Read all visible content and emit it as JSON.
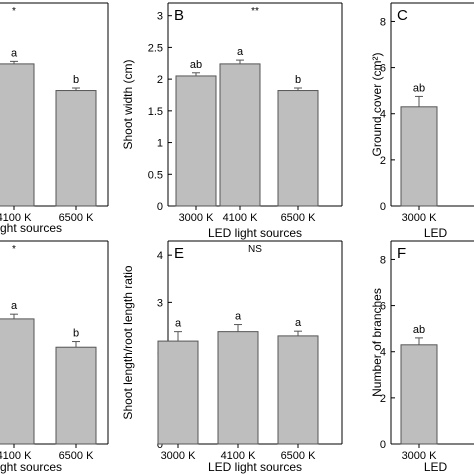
{
  "colors": {
    "bar_fill": "#bebebe",
    "bar_stroke": "#555555",
    "axis": "#000000"
  },
  "chart_data": [
    {
      "panel": "A",
      "type": "bar",
      "categories": [
        "4100 K",
        "6500 K"
      ],
      "tick_labels": [
        "4100 K",
        "6500 K"
      ],
      "values": [
        2.24,
        1.82
      ],
      "errors": [
        0.04,
        0.04
      ],
      "letters": [
        "a",
        "b"
      ],
      "significance": "*",
      "xlabel": "LED light sources",
      "xlabel_visible": "ght sources",
      "ylabel": "",
      "ylim": [
        0,
        3.2
      ],
      "yticks": [],
      "panel_label_visible": false,
      "grid": false
    },
    {
      "panel": "B",
      "type": "bar",
      "categories": [
        "3000 K",
        "4100 K",
        "6500 K"
      ],
      "tick_labels": [
        "3000 K",
        "4100 K",
        "6500 K"
      ],
      "values": [
        2.05,
        2.24,
        1.82
      ],
      "errors": [
        0.05,
        0.06,
        0.04
      ],
      "letters": [
        "ab",
        "a",
        "b"
      ],
      "significance": "**",
      "xlabel": "LED light sources",
      "xlabel_visible": "LED light sources",
      "ylabel": "Shoot width (cm)",
      "ylim": [
        0,
        3.2
      ],
      "yticks": [
        "0",
        "0.5",
        "1",
        "1.5",
        "2",
        "2.5",
        "3"
      ],
      "panel_label_visible": true,
      "grid": false
    },
    {
      "panel": "C",
      "type": "bar",
      "categories": [
        "3000 K"
      ],
      "tick_labels": [
        "3000 K"
      ],
      "values": [
        4.3
      ],
      "errors": [
        0.45
      ],
      "letters": [
        "ab"
      ],
      "significance": "",
      "xlabel": "LED light sources",
      "xlabel_visible": "LED",
      "ylabel": "Ground cover (cm²)",
      "ylim": [
        0,
        8.8
      ],
      "yticks": [
        "0",
        "2",
        "4",
        "6",
        "8"
      ],
      "panel_label_visible": true,
      "grid": false
    },
    {
      "panel": "D",
      "type": "bar",
      "categories": [
        "4100 K",
        "6500 K"
      ],
      "tick_labels": [
        "4100 K",
        "6500 K"
      ],
      "values": [
        2.65,
        2.05
      ],
      "errors": [
        0.1,
        0.12
      ],
      "letters": [
        "a",
        "b"
      ],
      "significance": "*",
      "xlabel": "LED light sources",
      "xlabel_visible": "ght sources",
      "ylabel": "",
      "ylim": [
        0,
        4.3
      ],
      "yticks": [],
      "panel_label_visible": false,
      "grid": false
    },
    {
      "panel": "E",
      "type": "bar",
      "categories": [
        "3000 K",
        "4100 K",
        "6500 K"
      ],
      "tick_labels": [
        "3000 K",
        "4100 K",
        "6500 K"
      ],
      "values": [
        2.18,
        2.38,
        2.29
      ],
      "errors": [
        0.2,
        0.15,
        0.1
      ],
      "letters": [
        "a",
        "a",
        "a"
      ],
      "significance": "NS",
      "xlabel": "LED light sources",
      "xlabel_visible": "LED light sources",
      "ylabel": "Shoot length/root length ratio",
      "ylim": [
        0,
        4.3
      ],
      "yticks": [
        "0",
        "1",
        "2",
        "3",
        "4"
      ],
      "panel_label_visible": true,
      "grid": false
    },
    {
      "panel": "F",
      "type": "bar",
      "categories": [
        "3000 K"
      ],
      "tick_labels": [
        "3000 K"
      ],
      "values": [
        4.3
      ],
      "errors": [
        0.3
      ],
      "letters": [
        "ab"
      ],
      "significance": "",
      "xlabel": "LED light sources",
      "xlabel_visible": "LED",
      "ylabel": "Number of branches",
      "ylim": [
        0,
        8.8
      ],
      "yticks": [
        "0",
        "2",
        "4",
        "6",
        "8"
      ],
      "panel_label_visible": true,
      "grid": false
    }
  ]
}
